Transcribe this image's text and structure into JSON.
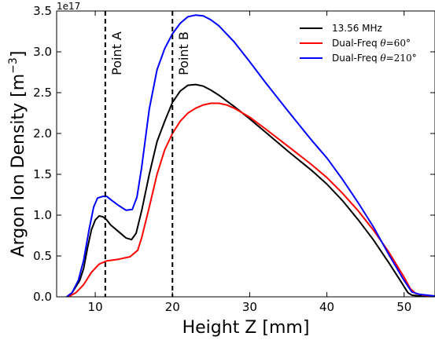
{
  "chart_data": {
    "type": "line",
    "xlabel": "Height Z [mm]",
    "ylabel": "Argon Ion Density [m$^{-3}$]",
    "ylabel_parts": {
      "base": "Argon Ion Density [m",
      "sup": "−3",
      "close": "]"
    },
    "y_exponent_label": "1e17",
    "xlim": [
      5,
      54
    ],
    "ylim": [
      0,
      3.5
    ],
    "x_ticks": [
      10,
      20,
      30,
      40,
      50
    ],
    "x_tick_labels": [
      "10",
      "20",
      "30",
      "40",
      "50"
    ],
    "y_ticks": [
      0,
      0.5,
      1.0,
      1.5,
      2.0,
      2.5,
      3.0,
      3.5
    ],
    "y_tick_labels": [
      "0.0",
      "0.5",
      "1.0",
      "1.5",
      "2.0",
      "2.5",
      "3.0",
      "3.5"
    ],
    "grid": false,
    "legend_position": "top-right",
    "vlines": [
      {
        "x": 11.3,
        "label": "Point A"
      },
      {
        "x": 20.0,
        "label": "Point B"
      }
    ],
    "series": [
      {
        "name": "13.56 MHz",
        "color": "#000000",
        "points": [
          [
            6.3,
            0.0
          ],
          [
            7,
            0.05
          ],
          [
            8,
            0.2
          ],
          [
            8.5,
            0.35
          ],
          [
            9,
            0.6
          ],
          [
            9.5,
            0.82
          ],
          [
            10,
            0.94
          ],
          [
            10.5,
            0.99
          ],
          [
            11,
            0.98
          ],
          [
            11.5,
            0.94
          ],
          [
            12,
            0.88
          ],
          [
            13,
            0.8
          ],
          [
            14,
            0.72
          ],
          [
            14.7,
            0.7
          ],
          [
            15.3,
            0.78
          ],
          [
            16,
            1.05
          ],
          [
            17,
            1.5
          ],
          [
            18,
            1.9
          ],
          [
            19,
            2.15
          ],
          [
            20,
            2.38
          ],
          [
            21,
            2.52
          ],
          [
            22,
            2.59
          ],
          [
            23,
            2.6
          ],
          [
            24,
            2.58
          ],
          [
            25,
            2.53
          ],
          [
            26,
            2.47
          ],
          [
            28,
            2.33
          ],
          [
            30,
            2.18
          ],
          [
            32,
            2.02
          ],
          [
            35,
            1.78
          ],
          [
            38,
            1.55
          ],
          [
            40,
            1.38
          ],
          [
            42,
            1.18
          ],
          [
            44,
            0.95
          ],
          [
            46,
            0.7
          ],
          [
            48,
            0.42
          ],
          [
            49.5,
            0.2
          ],
          [
            50.5,
            0.05
          ],
          [
            51,
            0.02
          ],
          [
            52,
            0.01
          ],
          [
            53,
            0.01
          ]
        ]
      },
      {
        "name": "Dual-Freq θ=60°",
        "name_parts": {
          "base": "Dual-Freq ",
          "theta": "θ",
          "value": "=60°"
        },
        "color": "#ff0000",
        "points": [
          [
            6.5,
            0.0
          ],
          [
            7.5,
            0.05
          ],
          [
            8.5,
            0.15
          ],
          [
            9.5,
            0.3
          ],
          [
            10.5,
            0.4
          ],
          [
            11.5,
            0.44
          ],
          [
            13,
            0.46
          ],
          [
            14.5,
            0.49
          ],
          [
            15.5,
            0.57
          ],
          [
            16,
            0.72
          ],
          [
            17,
            1.1
          ],
          [
            18,
            1.5
          ],
          [
            19,
            1.8
          ],
          [
            20,
            2.0
          ],
          [
            21,
            2.15
          ],
          [
            22,
            2.25
          ],
          [
            23,
            2.31
          ],
          [
            24,
            2.35
          ],
          [
            25,
            2.37
          ],
          [
            26,
            2.37
          ],
          [
            27,
            2.35
          ],
          [
            28,
            2.31
          ],
          [
            30,
            2.2
          ],
          [
            32,
            2.06
          ],
          [
            35,
            1.84
          ],
          [
            38,
            1.62
          ],
          [
            40,
            1.46
          ],
          [
            42,
            1.27
          ],
          [
            44,
            1.06
          ],
          [
            46,
            0.82
          ],
          [
            48,
            0.55
          ],
          [
            50,
            0.24
          ],
          [
            50.8,
            0.1
          ],
          [
            51.5,
            0.04
          ],
          [
            52.5,
            0.02
          ],
          [
            53.5,
            0.01
          ]
        ]
      },
      {
        "name": "Dual-Freq θ=210°",
        "name_parts": {
          "base": "Dual-Freq ",
          "theta": "θ",
          "value": "=210°"
        },
        "color": "#0000ff",
        "points": [
          [
            6.3,
            0.0
          ],
          [
            7,
            0.05
          ],
          [
            7.8,
            0.2
          ],
          [
            8.5,
            0.45
          ],
          [
            9.2,
            0.82
          ],
          [
            9.8,
            1.1
          ],
          [
            10.3,
            1.21
          ],
          [
            11,
            1.23
          ],
          [
            11.5,
            1.23
          ],
          [
            12,
            1.19
          ],
          [
            13,
            1.12
          ],
          [
            14,
            1.06
          ],
          [
            14.8,
            1.07
          ],
          [
            15.4,
            1.22
          ],
          [
            16,
            1.58
          ],
          [
            17,
            2.3
          ],
          [
            18,
            2.78
          ],
          [
            19,
            3.04
          ],
          [
            20,
            3.22
          ],
          [
            21,
            3.35
          ],
          [
            22,
            3.43
          ],
          [
            23,
            3.45
          ],
          [
            24,
            3.44
          ],
          [
            25,
            3.39
          ],
          [
            26,
            3.32
          ],
          [
            28,
            3.12
          ],
          [
            30,
            2.88
          ],
          [
            32,
            2.63
          ],
          [
            35,
            2.27
          ],
          [
            38,
            1.92
          ],
          [
            40,
            1.7
          ],
          [
            42,
            1.44
          ],
          [
            44,
            1.16
          ],
          [
            46,
            0.86
          ],
          [
            48,
            0.52
          ],
          [
            50,
            0.2
          ],
          [
            51,
            0.06
          ],
          [
            52,
            0.03
          ],
          [
            53,
            0.02
          ],
          [
            54,
            0.01
          ]
        ]
      }
    ]
  }
}
